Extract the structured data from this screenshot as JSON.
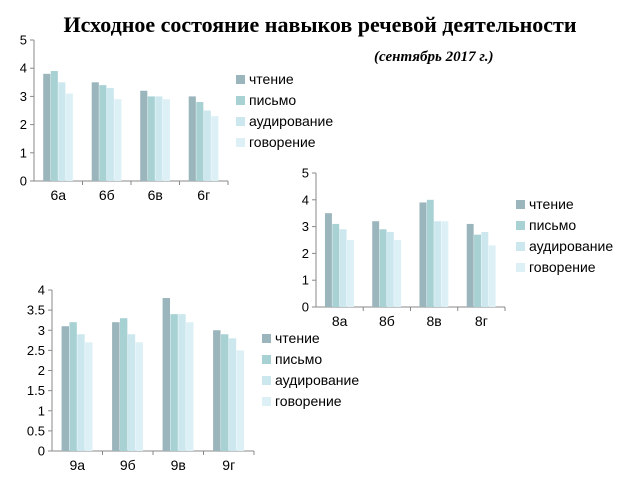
{
  "title": "Исходное состояние навыков речевой деятельности",
  "subtitle": "(сентябрь 2017 г.)",
  "colors": {
    "series": [
      "#9ab5bb",
      "#a8d1d4",
      "#cce8ee",
      "#ddf0f5"
    ],
    "axis": "#888888"
  },
  "chart_data": [
    {
      "type": "bar",
      "categories": [
        "6а",
        "6б",
        "6в",
        "6г"
      ],
      "series": [
        {
          "name": "чтение",
          "values": [
            3.8,
            3.5,
            3.2,
            3.0
          ]
        },
        {
          "name": "письмо",
          "values": [
            3.9,
            3.4,
            3.0,
            2.8
          ]
        },
        {
          "name": "аудирование",
          "values": [
            3.5,
            3.3,
            3.0,
            2.5
          ]
        },
        {
          "name": "говорение",
          "values": [
            3.1,
            2.9,
            2.9,
            2.3
          ]
        }
      ],
      "ylim": [
        0,
        5
      ],
      "yticks": [
        "0",
        "1",
        "2",
        "3",
        "4",
        "5"
      ],
      "legend": "right",
      "grid": false
    },
    {
      "type": "bar",
      "categories": [
        "8а",
        "8б",
        "8в",
        "8г"
      ],
      "series": [
        {
          "name": "чтение",
          "values": [
            3.5,
            3.2,
            3.9,
            3.1
          ]
        },
        {
          "name": "письмо",
          "values": [
            3.1,
            2.9,
            4.0,
            2.7
          ]
        },
        {
          "name": "аудирование",
          "values": [
            2.9,
            2.8,
            3.2,
            2.8
          ]
        },
        {
          "name": "говорение",
          "values": [
            2.5,
            2.5,
            3.2,
            2.3
          ]
        }
      ],
      "ylim": [
        0,
        5
      ],
      "yticks": [
        "0",
        "1",
        "2",
        "3",
        "4",
        "5"
      ],
      "legend": "right",
      "grid": false
    },
    {
      "type": "bar",
      "categories": [
        "9а",
        "9б",
        "9в",
        "9г"
      ],
      "series": [
        {
          "name": "чтение",
          "values": [
            3.1,
            3.2,
            3.8,
            3.0
          ]
        },
        {
          "name": "письмо",
          "values": [
            3.2,
            3.3,
            3.4,
            2.9
          ]
        },
        {
          "name": "аудирование",
          "values": [
            2.9,
            2.9,
            3.4,
            2.8
          ]
        },
        {
          "name": "говорение",
          "values": [
            2.7,
            2.7,
            3.2,
            2.5
          ]
        }
      ],
      "ylim": [
        0,
        4
      ],
      "yticks": [
        "0",
        "0.5",
        "1",
        "1.5",
        "2",
        "2.5",
        "3",
        "3.5",
        "4"
      ],
      "legend": "right",
      "grid": false
    }
  ]
}
